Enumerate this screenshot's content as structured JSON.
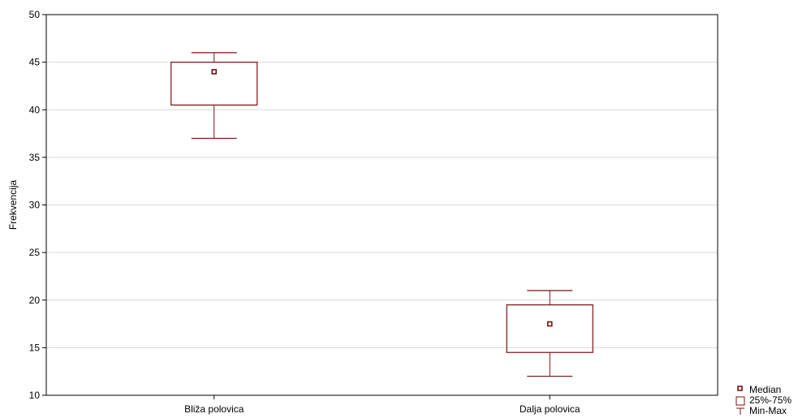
{
  "chart_data": {
    "type": "boxplot",
    "ylabel": "Frekvencija",
    "ylim": [
      10,
      50
    ],
    "yticks": [
      10,
      15,
      20,
      25,
      30,
      35,
      40,
      45,
      50
    ],
    "grid": true,
    "categories": [
      "Bliža polovica",
      "Dalja polovica"
    ],
    "boxes": [
      {
        "category": "Bliža polovica",
        "min": 37,
        "q1": 40.5,
        "median": 44,
        "q3": 45,
        "max": 46
      },
      {
        "category": "Dalja polovica",
        "min": 12,
        "q1": 14.5,
        "median": 17.5,
        "q3": 19.5,
        "max": 21
      }
    ],
    "legend": {
      "placement": "bottom-right",
      "items": [
        "Median",
        "25%-75%",
        "Min-Max"
      ]
    },
    "colors": {
      "series": "#7b1010",
      "grid": "#d9d9d9",
      "axis": "#000000"
    }
  }
}
